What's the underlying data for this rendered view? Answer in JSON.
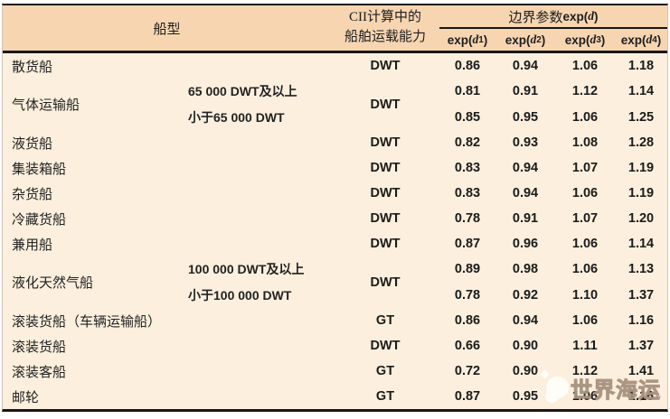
{
  "colors": {
    "header_bg": "#f7d5b1",
    "body_bg": "#fcefdd",
    "rule": "#171717"
  },
  "header": {
    "ship_type": "船型",
    "capacity_line1": "CII计算中的",
    "capacity_line2": "船舶运载能力",
    "boundary": {
      "zh": "边界参数",
      "pre": "exp( ",
      "var": "d",
      "post": " )"
    },
    "exp_cols": [
      {
        "pre": "exp( ",
        "var": "d",
        "sub": "1",
        "post": " )"
      },
      {
        "pre": "exp( ",
        "var": "d",
        "sub": "2",
        "post": " )"
      },
      {
        "pre": "exp( ",
        "var": "d",
        "sub": "3",
        "post": " )"
      },
      {
        "pre": "exp( ",
        "var": "d",
        "sub": "4",
        "post": " )"
      }
    ]
  },
  "table": {
    "rows": [
      {
        "type": "散货船",
        "capacity": "DWT",
        "values": [
          "0.86",
          "0.94",
          "1.06",
          "1.18"
        ]
      },
      {
        "type": "气体运输船",
        "capacity": "DWT",
        "subrows": [
          {
            "label": "65 000 DWT及以上",
            "values": [
              "0.81",
              "0.91",
              "1.12",
              "1.14"
            ]
          },
          {
            "label": "小于65 000 DWT",
            "values": [
              "0.85",
              "0.95",
              "1.06",
              "1.25"
            ]
          }
        ]
      },
      {
        "type": "液货船",
        "capacity": "DWT",
        "values": [
          "0.82",
          "0.93",
          "1.08",
          "1.28"
        ]
      },
      {
        "type": "集装箱船",
        "capacity": "DWT",
        "values": [
          "0.83",
          "0.94",
          "1.07",
          "1.19"
        ]
      },
      {
        "type": "杂货船",
        "capacity": "DWT",
        "values": [
          "0.83",
          "0.94",
          "1.06",
          "1.19"
        ]
      },
      {
        "type": "冷藏货船",
        "capacity": "DWT",
        "values": [
          "0.78",
          "0.91",
          "1.07",
          "1.20"
        ]
      },
      {
        "type": "兼用船",
        "capacity": "DWT",
        "values": [
          "0.87",
          "0.96",
          "1.06",
          "1.14"
        ]
      },
      {
        "type": "液化天然气船",
        "capacity": "DWT",
        "subrows": [
          {
            "label": "100 000 DWT及以上",
            "values": [
              "0.89",
              "0.98",
              "1.06",
              "1.13"
            ]
          },
          {
            "label": "小于100 000 DWT",
            "values": [
              "0.78",
              "0.92",
              "1.10",
              "1.37"
            ]
          }
        ]
      },
      {
        "type": "滚装货船（车辆运输船）",
        "capacity": "GT",
        "values": [
          "0.86",
          "0.94",
          "1.06",
          "1.16"
        ]
      },
      {
        "type": "滚装货船",
        "capacity": "DWT",
        "values": [
          "0.66",
          "0.90",
          "1.11",
          "1.37"
        ]
      },
      {
        "type": "滚装客船",
        "capacity": "GT",
        "values": [
          "0.72",
          "0.90",
          "1.12",
          "1.41"
        ]
      },
      {
        "type": "邮轮",
        "capacity": "GT",
        "values": [
          "0.87",
          "0.95",
          "1.06",
          "1.16"
        ]
      }
    ]
  },
  "watermark": {
    "text": "世界海运"
  }
}
